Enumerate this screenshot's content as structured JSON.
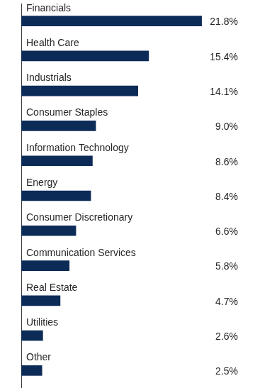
{
  "chart_data": {
    "type": "bar",
    "orientation": "horizontal",
    "categories": [
      "Financials",
      "Health Care",
      "Industrials",
      "Consumer Staples",
      "Information Technology",
      "Energy",
      "Consumer Discretionary",
      "Communication Services",
      "Real Estate",
      "Utilities",
      "Other"
    ],
    "values": [
      21.8,
      15.4,
      14.1,
      9.0,
      8.6,
      8.4,
      6.6,
      5.8,
      4.7,
      2.6,
      2.5
    ],
    "value_labels": [
      "21.8%",
      "15.4%",
      "14.1%",
      "9.0%",
      "8.6%",
      "8.4%",
      "6.6%",
      "5.8%",
      "4.7%",
      "2.6%",
      "2.5%"
    ],
    "color": "#0c2b57",
    "xlim": [
      0,
      26.2
    ],
    "grid": false,
    "data_labels": true,
    "tick_labels": "y"
  }
}
